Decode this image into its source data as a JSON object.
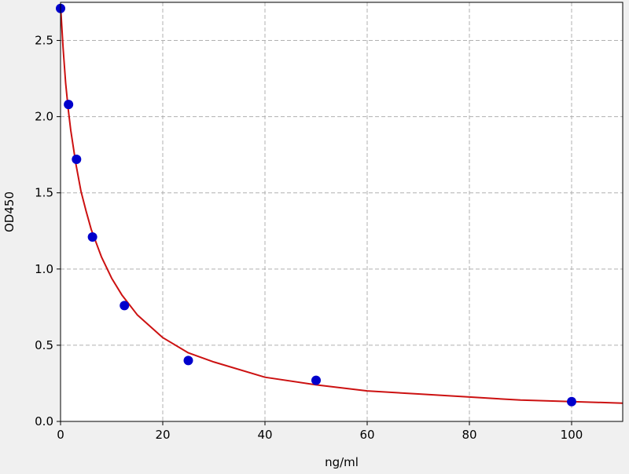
{
  "chart_data": {
    "type": "scatter",
    "title": "",
    "xlabel": "ng/ml",
    "ylabel": "OD450",
    "xlim": [
      0,
      110
    ],
    "ylim": [
      0,
      2.75
    ],
    "x_ticks": [
      0,
      20,
      40,
      60,
      80,
      100
    ],
    "y_ticks": [
      0.0,
      0.5,
      1.0,
      1.5,
      2.0,
      2.5
    ],
    "x_tick_labels": [
      "0",
      "20",
      "40",
      "60",
      "80",
      "100"
    ],
    "y_tick_labels": [
      "0.0",
      "0.5",
      "1.0",
      "1.5",
      "2.0",
      "2.5"
    ],
    "grid": true,
    "legend": "none",
    "series": [
      {
        "kind": "points",
        "color": "#0000cc",
        "x": [
          0,
          1.5625,
          3.125,
          6.25,
          12.5,
          25,
          50,
          100
        ],
        "y": [
          2.71,
          2.08,
          1.72,
          1.21,
          0.76,
          0.4,
          0.27,
          0.13
        ]
      },
      {
        "kind": "fitted-curve",
        "color": "#cc1111",
        "x": [
          0,
          0.5,
          1,
          1.5,
          2,
          3,
          4,
          5,
          6,
          8,
          10,
          12,
          15,
          20,
          25,
          30,
          40,
          50,
          60,
          70,
          80,
          90,
          100,
          110
        ],
        "y": [
          2.73,
          2.45,
          2.22,
          2.05,
          1.91,
          1.69,
          1.51,
          1.38,
          1.26,
          1.08,
          0.94,
          0.83,
          0.7,
          0.55,
          0.45,
          0.39,
          0.29,
          0.24,
          0.2,
          0.18,
          0.16,
          0.14,
          0.13,
          0.12
        ]
      }
    ]
  }
}
